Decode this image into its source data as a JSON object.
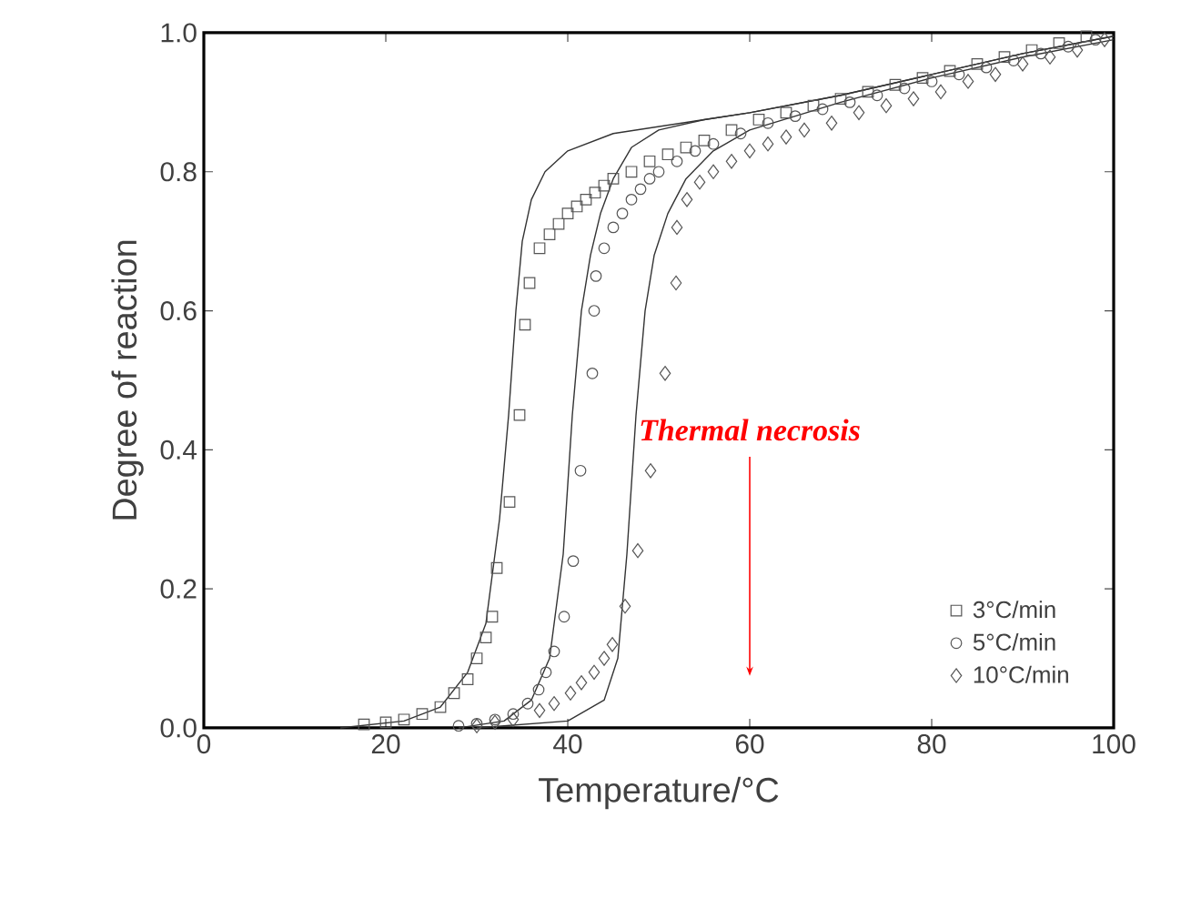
{
  "chart_data": {
    "type": "scatter",
    "xlabel": "Temperature/°C",
    "ylabel": "Degree of reaction",
    "xlim": [
      0,
      100
    ],
    "ylim": [
      0,
      1.0
    ],
    "xticks": [
      0,
      20,
      40,
      60,
      80,
      100
    ],
    "yticks": [
      {
        "value": 0,
        "label": "0.0"
      },
      {
        "value": 0.2,
        "label": "0.2"
      },
      {
        "value": 0.4,
        "label": "0.4"
      },
      {
        "value": 0.6,
        "label": "0.6"
      },
      {
        "value": 0.8,
        "label": "0.8"
      },
      {
        "value": 1.0,
        "label": "1.0"
      }
    ],
    "legend": "bottom right",
    "annotations": [
      "Thermal necrosis"
    ],
    "series": [
      {
        "name": "3°C/min",
        "marker": "square",
        "color": "#555555",
        "x": [
          17.6,
          20,
          22,
          24,
          26,
          27.5,
          29,
          30,
          31,
          31.7,
          32.2,
          33.6,
          34.7,
          35.3,
          35.8,
          36.9,
          38,
          39,
          40,
          41,
          42,
          43,
          44,
          45,
          47,
          49,
          51,
          53,
          55,
          58,
          61,
          64,
          67,
          70,
          73,
          76,
          79,
          82,
          85,
          88,
          91,
          94,
          97
        ],
        "values": [
          0.005,
          0.008,
          0.012,
          0.02,
          0.03,
          0.05,
          0.07,
          0.1,
          0.13,
          0.16,
          0.23,
          0.325,
          0.45,
          0.58,
          0.64,
          0.69,
          0.71,
          0.725,
          0.74,
          0.75,
          0.76,
          0.77,
          0.78,
          0.79,
          0.8,
          0.815,
          0.825,
          0.835,
          0.845,
          0.86,
          0.875,
          0.885,
          0.895,
          0.905,
          0.915,
          0.925,
          0.935,
          0.945,
          0.955,
          0.965,
          0.975,
          0.985,
          0.995
        ]
      },
      {
        "name": "5°C/min",
        "marker": "circle",
        "color": "#555555",
        "x": [
          28,
          30,
          32,
          34,
          35.6,
          36.8,
          37.6,
          38.5,
          39.6,
          40.6,
          41.4,
          42.7,
          42.9,
          43.1,
          44,
          45,
          46,
          47,
          48,
          49,
          50,
          52,
          54,
          56,
          59,
          62,
          65,
          68,
          71,
          74,
          77,
          80,
          83,
          86,
          89,
          92,
          95,
          98
        ],
        "values": [
          0.003,
          0.006,
          0.012,
          0.02,
          0.035,
          0.055,
          0.08,
          0.11,
          0.16,
          0.24,
          0.37,
          0.51,
          0.6,
          0.65,
          0.69,
          0.72,
          0.74,
          0.76,
          0.775,
          0.79,
          0.8,
          0.815,
          0.83,
          0.84,
          0.855,
          0.87,
          0.88,
          0.89,
          0.9,
          0.91,
          0.92,
          0.93,
          0.94,
          0.95,
          0.96,
          0.97,
          0.98,
          0.99
        ]
      },
      {
        "name": "10°C/min",
        "marker": "diamond",
        "color": "#555555",
        "x": [
          30,
          32,
          34,
          36.9,
          38.5,
          40.3,
          41.5,
          42.9,
          44,
          44.9,
          46.3,
          47.7,
          49.1,
          50.7,
          51.9,
          52,
          53.1,
          54.5,
          56,
          58,
          60,
          62,
          64,
          66,
          69,
          72,
          75,
          78,
          81,
          84,
          87,
          90,
          93,
          96,
          99
        ],
        "values": [
          0.003,
          0.008,
          0.012,
          0.025,
          0.035,
          0.05,
          0.065,
          0.08,
          0.1,
          0.12,
          0.175,
          0.255,
          0.37,
          0.51,
          0.64,
          0.72,
          0.76,
          0.785,
          0.8,
          0.815,
          0.83,
          0.84,
          0.85,
          0.86,
          0.87,
          0.885,
          0.895,
          0.905,
          0.915,
          0.93,
          0.94,
          0.955,
          0.965,
          0.975,
          0.99
        ]
      },
      {
        "type": "line",
        "color": "#333333",
        "x": [
          15,
          22,
          26,
          29,
          31,
          32.5,
          33.5,
          34.3,
          35,
          36,
          37.5,
          40,
          45,
          50,
          55,
          60,
          70,
          80,
          90,
          100
        ],
        "values": [
          0,
          0.01,
          0.03,
          0.08,
          0.15,
          0.3,
          0.45,
          0.6,
          0.7,
          0.76,
          0.8,
          0.83,
          0.855,
          0.865,
          0.875,
          0.885,
          0.91,
          0.94,
          0.97,
          0.995
        ]
      },
      {
        "type": "line",
        "color": "#333333",
        "x": [
          28,
          33,
          36,
          38,
          39.5,
          40.5,
          41.5,
          42.5,
          43.6,
          45,
          47,
          50,
          55,
          60,
          70,
          80,
          90,
          100
        ],
        "values": [
          0,
          0.01,
          0.04,
          0.1,
          0.25,
          0.45,
          0.6,
          0.68,
          0.74,
          0.79,
          0.835,
          0.86,
          0.875,
          0.885,
          0.91,
          0.94,
          0.97,
          0.995
        ]
      },
      {
        "type": "line",
        "color": "#333333",
        "x": [
          30,
          40,
          44,
          45.5,
          46.5,
          47.5,
          48.5,
          49.5,
          51,
          53,
          56,
          60,
          65,
          70,
          80,
          90,
          100
        ],
        "values": [
          0,
          0.01,
          0.04,
          0.1,
          0.25,
          0.45,
          0.6,
          0.68,
          0.74,
          0.79,
          0.83,
          0.86,
          0.88,
          0.9,
          0.935,
          0.965,
          0.99
        ]
      }
    ]
  }
}
